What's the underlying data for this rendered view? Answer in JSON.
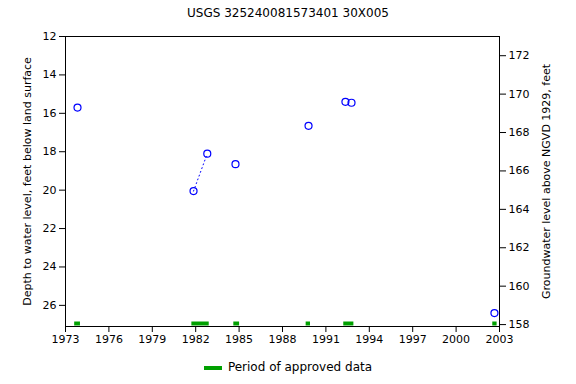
{
  "chart_data": {
    "type": "scatter",
    "title": "USGS 325240081573401 30X005",
    "ylabel": "Depth to water level, feet below land surface",
    "y2label": "Groundwater level above NGVD 1929, feet",
    "x": [
      1973.83,
      1981.85,
      1982.8,
      1984.75,
      1989.8,
      1992.35,
      1992.77,
      2002.65
    ],
    "series": [
      {
        "type": "scatter",
        "marker": "circle",
        "color": "#0000ff",
        "values": [
          15.7,
          20.05,
          18.1,
          18.65,
          16.65,
          15.4,
          15.45,
          26.4
        ]
      },
      {
        "type": "line",
        "line_style": "dotted",
        "color": "#0000ff",
        "values": [
          null,
          20.05,
          18.1,
          null,
          null,
          null,
          null,
          null
        ]
      }
    ],
    "approved_periods": {
      "name": "Period of approved data",
      "color": "#00a000",
      "x1": [
        1973.6,
        1981.7,
        1984.6,
        1989.6,
        1992.2,
        2002.5
      ],
      "x2": [
        1974.0,
        1982.9,
        1985.0,
        1989.9,
        1992.9,
        2002.8
      ]
    },
    "xlim": [
      1973,
      2003
    ],
    "xticks": [
      1973,
      1976,
      1979,
      1982,
      1985,
      1988,
      1991,
      1994,
      1997,
      2000,
      2003
    ],
    "ylim": [
      27.1,
      12
    ],
    "yticks": [
      12,
      14,
      16,
      18,
      20,
      22,
      24,
      26
    ],
    "y2lim": [
      157.9,
      173
    ],
    "y2ticks": [
      158,
      160,
      162,
      164,
      166,
      168,
      170,
      172
    ],
    "grid": false
  }
}
